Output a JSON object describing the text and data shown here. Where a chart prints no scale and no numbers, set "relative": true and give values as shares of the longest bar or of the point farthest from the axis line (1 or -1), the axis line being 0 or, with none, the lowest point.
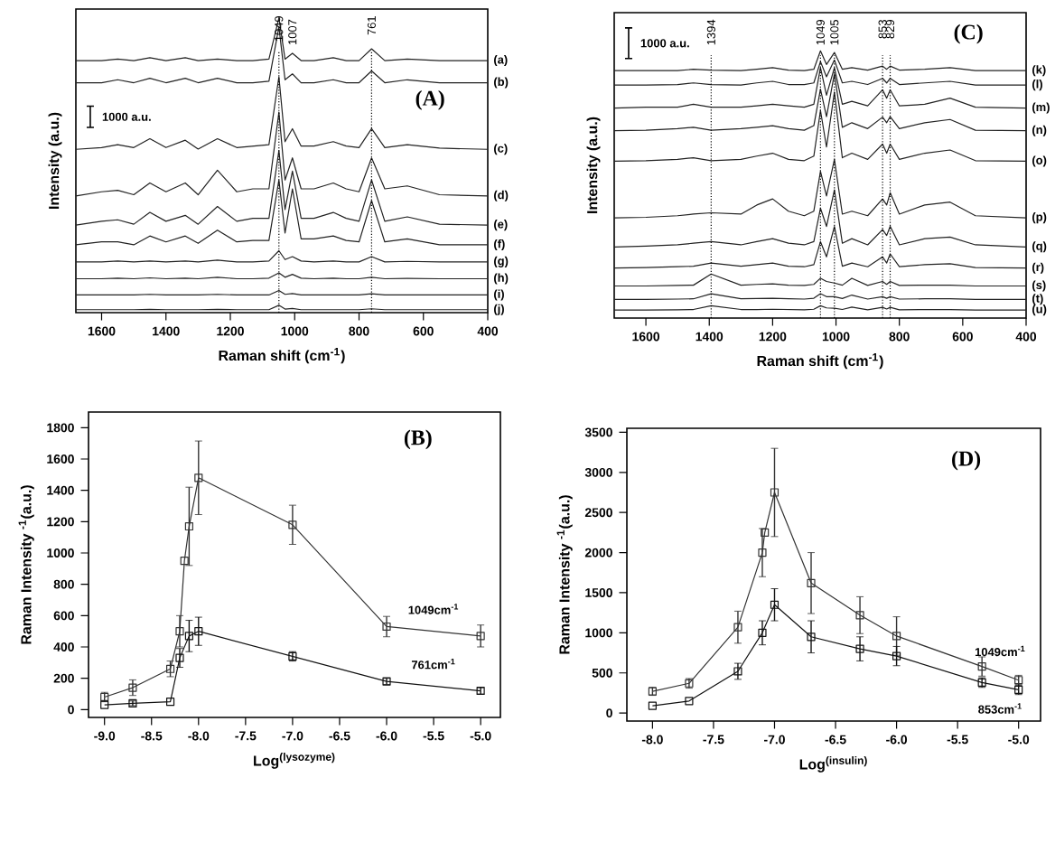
{
  "chart_data": [
    {
      "type": "line",
      "relative": true,
      "xlabel": "Raman shift (cm$^{-1}$)",
      "ylabel": "Intensity (a.u.)",
      "xlim": [
        1680,
        400
      ],
      "xticks": [
        1600,
        1400,
        1200,
        1000,
        800,
        600,
        400
      ],
      "x": [
        1680,
        1600,
        1550,
        1500,
        1450,
        1400,
        1340,
        1300,
        1240,
        1180,
        1130,
        1080,
        1049,
        1030,
        1007,
        980,
        940,
        880,
        840,
        800,
        761,
        720,
        650,
        550,
        400
      ],
      "series": [
        {
          "name": "(a)",
          "color": "#222222",
          "values": [
            0.855,
            0.855,
            0.86,
            0.855,
            0.865,
            0.855,
            0.865,
            0.855,
            0.86,
            0.855,
            0.855,
            0.86,
            1.0,
            0.86,
            0.88,
            0.855,
            0.855,
            0.865,
            0.855,
            0.855,
            0.895,
            0.855,
            0.86,
            0.855,
            0.855
          ]
        },
        {
          "name": "(b)",
          "color": "#222222",
          "values": [
            0.78,
            0.78,
            0.79,
            0.78,
            0.795,
            0.78,
            0.795,
            0.78,
            0.795,
            0.78,
            0.78,
            0.785,
            0.97,
            0.79,
            0.81,
            0.78,
            0.78,
            0.79,
            0.78,
            0.78,
            0.82,
            0.78,
            0.79,
            0.78,
            0.78
          ]
        },
        {
          "name": "(c)",
          "color": "#222222",
          "values": [
            0.554,
            0.56,
            0.57,
            0.56,
            0.59,
            0.56,
            0.585,
            0.555,
            0.59,
            0.56,
            0.565,
            0.57,
            0.8,
            0.58,
            0.624,
            0.565,
            0.565,
            0.58,
            0.565,
            0.56,
            0.624,
            0.56,
            0.57,
            0.558,
            0.554
          ]
        },
        {
          "name": "(d)",
          "color": "#222222",
          "values": [
            0.396,
            0.41,
            0.415,
            0.4,
            0.44,
            0.41,
            0.44,
            0.4,
            0.483,
            0.41,
            0.42,
            0.42,
            0.68,
            0.45,
            0.525,
            0.42,
            0.42,
            0.44,
            0.42,
            0.41,
            0.525,
            0.42,
            0.43,
            0.4,
            0.396
          ]
        },
        {
          "name": "(e)",
          "color": "#222222",
          "values": [
            0.297,
            0.31,
            0.315,
            0.3,
            0.34,
            0.31,
            0.33,
            0.3,
            0.36,
            0.31,
            0.32,
            0.32,
            0.55,
            0.35,
            0.48,
            0.32,
            0.32,
            0.34,
            0.32,
            0.31,
            0.45,
            0.31,
            0.325,
            0.3,
            0.297
          ]
        },
        {
          "name": "(f)",
          "color": "#222222",
          "values": [
            0.23,
            0.24,
            0.24,
            0.23,
            0.26,
            0.24,
            0.26,
            0.235,
            0.28,
            0.24,
            0.245,
            0.245,
            0.45,
            0.27,
            0.42,
            0.25,
            0.25,
            0.26,
            0.245,
            0.24,
            0.38,
            0.24,
            0.25,
            0.23,
            0.23
          ]
        },
        {
          "name": "(g)",
          "color": "#222222",
          "values": [
            0.172,
            0.172,
            0.175,
            0.172,
            0.175,
            0.172,
            0.175,
            0.172,
            0.178,
            0.172,
            0.172,
            0.175,
            0.21,
            0.18,
            0.19,
            0.175,
            0.172,
            0.175,
            0.172,
            0.172,
            0.19,
            0.172,
            0.174,
            0.172,
            0.172
          ]
        },
        {
          "name": "(h)",
          "color": "#222222",
          "values": [
            0.115,
            0.115,
            0.117,
            0.115,
            0.118,
            0.115,
            0.117,
            0.115,
            0.12,
            0.115,
            0.115,
            0.117,
            0.135,
            0.12,
            0.13,
            0.117,
            0.115,
            0.117,
            0.115,
            0.115,
            0.12,
            0.115,
            0.116,
            0.115,
            0.115
          ]
        },
        {
          "name": "(i)",
          "color": "#222222",
          "values": [
            0.06,
            0.06,
            0.06,
            0.06,
            0.062,
            0.06,
            0.06,
            0.06,
            0.062,
            0.06,
            0.06,
            0.06,
            0.075,
            0.062,
            0.065,
            0.06,
            0.06,
            0.06,
            0.06,
            0.06,
            0.064,
            0.06,
            0.06,
            0.06,
            0.06
          ]
        },
        {
          "name": "(j)",
          "color": "#222222",
          "values": [
            0.01,
            0.01,
            0.01,
            0.01,
            0.011,
            0.01,
            0.01,
            0.01,
            0.011,
            0.01,
            0.01,
            0.01,
            0.025,
            0.012,
            0.014,
            0.01,
            0.01,
            0.01,
            0.01,
            0.01,
            0.013,
            0.01,
            0.01,
            0.01,
            0.01
          ]
        }
      ],
      "ref_lines": [
        {
          "axis": "x",
          "value": 1049,
          "label": "1049",
          "line_style": "dotted"
        },
        {
          "axis": "x",
          "value": 761,
          "label": "761",
          "line_style": "dotted"
        }
      ],
      "annotations": [
        "(A)",
        "1000 a.u.",
        {
          "text": "1007",
          "x": 1007,
          "y": 0.9
        }
      ]
    },
    {
      "type": "line",
      "relative": true,
      "xlabel": "Raman shift (cm$^{-1}$)",
      "ylabel": "Intensity (a.u.)",
      "xlim": [
        1700,
        400
      ],
      "xticks": [
        1600,
        1400,
        1200,
        1000,
        800,
        600,
        400
      ],
      "x": [
        1700,
        1600,
        1500,
        1450,
        1394,
        1300,
        1250,
        1200,
        1150,
        1100,
        1070,
        1049,
        1030,
        1005,
        980,
        950,
        900,
        853,
        840,
        829,
        800,
        720,
        640,
        560,
        400
      ],
      "series": [
        {
          "name": "(k)",
          "color": "#222222",
          "values": [
            0.926,
            0.926,
            0.926,
            0.931,
            0.928,
            0.926,
            0.931,
            0.937,
            0.928,
            0.926,
            0.931,
            1.0,
            0.949,
            0.994,
            0.931,
            0.937,
            0.928,
            0.943,
            0.931,
            0.943,
            0.928,
            0.931,
            0.937,
            0.926,
            0.926
          ]
        },
        {
          "name": "(l)",
          "color": "#222222",
          "values": [
            0.872,
            0.872,
            0.874,
            0.88,
            0.874,
            0.872,
            0.88,
            0.886,
            0.874,
            0.874,
            0.88,
            0.96,
            0.903,
            0.966,
            0.88,
            0.886,
            0.874,
            0.897,
            0.88,
            0.897,
            0.874,
            0.88,
            0.886,
            0.872,
            0.872
          ]
        },
        {
          "name": "(m)",
          "color": "#222222",
          "values": [
            0.786,
            0.789,
            0.789,
            0.8,
            0.789,
            0.789,
            0.794,
            0.8,
            0.794,
            0.789,
            0.8,
            0.937,
            0.834,
            0.937,
            0.8,
            0.811,
            0.794,
            0.854,
            0.823,
            0.854,
            0.794,
            0.8,
            0.823,
            0.789,
            0.786
          ]
        },
        {
          "name": "(n)",
          "color": "#222222",
          "values": [
            0.701,
            0.703,
            0.709,
            0.714,
            0.703,
            0.709,
            0.714,
            0.72,
            0.709,
            0.703,
            0.72,
            0.857,
            0.754,
            0.914,
            0.714,
            0.731,
            0.709,
            0.752,
            0.731,
            0.754,
            0.709,
            0.731,
            0.743,
            0.703,
            0.701
          ]
        },
        {
          "name": "(o)",
          "color": "#222222",
          "values": [
            0.587,
            0.589,
            0.594,
            0.6,
            0.589,
            0.594,
            0.606,
            0.617,
            0.594,
            0.589,
            0.606,
            0.777,
            0.64,
            0.846,
            0.6,
            0.617,
            0.594,
            0.651,
            0.617,
            0.651,
            0.594,
            0.617,
            0.629,
            0.589,
            0.587
          ]
        },
        {
          "name": "(p)",
          "color": "#222222",
          "values": [
            0.375,
            0.377,
            0.383,
            0.389,
            0.394,
            0.389,
            0.423,
            0.446,
            0.4,
            0.383,
            0.4,
            0.549,
            0.457,
            0.594,
            0.389,
            0.4,
            0.383,
            0.446,
            0.423,
            0.469,
            0.389,
            0.423,
            0.434,
            0.383,
            0.375
          ]
        },
        {
          "name": "(q)",
          "color": "#222222",
          "values": [
            0.266,
            0.269,
            0.274,
            0.28,
            0.286,
            0.274,
            0.286,
            0.297,
            0.28,
            0.274,
            0.286,
            0.411,
            0.343,
            0.48,
            0.28,
            0.297,
            0.274,
            0.331,
            0.309,
            0.343,
            0.274,
            0.297,
            0.303,
            0.274,
            0.266
          ]
        },
        {
          "name": "(r)",
          "color": "#222222",
          "values": [
            0.187,
            0.189,
            0.192,
            0.194,
            0.206,
            0.194,
            0.2,
            0.206,
            0.194,
            0.192,
            0.2,
            0.286,
            0.229,
            0.343,
            0.194,
            0.206,
            0.192,
            0.229,
            0.206,
            0.24,
            0.192,
            0.2,
            0.203,
            0.189,
            0.187
          ]
        },
        {
          "name": "(s)",
          "color": "#222222",
          "values": [
            0.12,
            0.12,
            0.122,
            0.123,
            0.165,
            0.123,
            0.126,
            0.128,
            0.123,
            0.122,
            0.126,
            0.149,
            0.137,
            0.131,
            0.123,
            0.149,
            0.122,
            0.137,
            0.126,
            0.137,
            0.122,
            0.123,
            0.123,
            0.12,
            0.12
          ]
        },
        {
          "name": "(t)",
          "color": "#222222",
          "values": [
            0.07,
            0.07,
            0.071,
            0.072,
            0.091,
            0.072,
            0.073,
            0.074,
            0.072,
            0.071,
            0.074,
            0.091,
            0.08,
            0.08,
            0.073,
            0.086,
            0.071,
            0.08,
            0.074,
            0.08,
            0.071,
            0.072,
            0.072,
            0.07,
            0.07
          ]
        },
        {
          "name": "(u)",
          "color": "#222222",
          "values": [
            0.03,
            0.03,
            0.031,
            0.032,
            0.046,
            0.032,
            0.032,
            0.033,
            0.032,
            0.031,
            0.033,
            0.046,
            0.038,
            0.037,
            0.032,
            0.041,
            0.031,
            0.04,
            0.034,
            0.04,
            0.031,
            0.032,
            0.032,
            0.03,
            0.03
          ]
        }
      ],
      "ref_lines": [
        {
          "axis": "x",
          "value": 1394,
          "label": "1394",
          "line_style": "dotted"
        },
        {
          "axis": "x",
          "value": 1049,
          "label": "1049",
          "line_style": "dotted"
        },
        {
          "axis": "x",
          "value": 1005,
          "label": "1005",
          "line_style": "dotted"
        },
        {
          "axis": "x",
          "value": 853,
          "label": "853",
          "line_style": "dotted"
        },
        {
          "axis": "x",
          "value": 829,
          "label": "829",
          "line_style": "dotted"
        }
      ],
      "annotations": [
        "(C)",
        "1000 a.u."
      ]
    },
    {
      "type": "line",
      "marker": "square",
      "xlabel": "Log$^{(lysozyme)}$",
      "ylabel": "Raman Intensity $^{-1}$(a.u.)",
      "xlim": [
        -9.17,
        -4.79
      ],
      "xticks": [
        {
          "value": -9,
          "label": "-9.0"
        },
        {
          "value": -8.5,
          "label": "-8.5"
        },
        {
          "value": -8,
          "label": "-8.0"
        },
        {
          "value": -7.5,
          "label": "-7.5"
        },
        {
          "value": -7,
          "label": "-7.0"
        },
        {
          "value": -6.5,
          "label": "-6.5"
        },
        {
          "value": -6,
          "label": "-6.0"
        },
        {
          "value": -5.5,
          "label": "-5.5"
        },
        {
          "value": -5,
          "label": "-5.0"
        }
      ],
      "ylim": [
        -50,
        1900
      ],
      "yticks": [
        0,
        200,
        400,
        600,
        800,
        1000,
        1200,
        1400,
        1600,
        1800
      ],
      "series": [
        {
          "name": "1049cm$^{-1}$",
          "color": "#333333",
          "x": [
            -9.0,
            -8.7,
            -8.3,
            -8.2,
            -8.15,
            -8.1,
            -8.0,
            -7.0,
            -6.0,
            -5.0
          ],
          "values": [
            80,
            140,
            260,
            500,
            950,
            1170,
            1480,
            1180,
            530,
            470
          ],
          "errors": [
            30,
            50,
            50,
            100,
            null,
            250,
            235,
            125,
            65,
            70
          ]
        },
        {
          "name": "761cm$^{-1}$",
          "color": "#111111",
          "x": [
            -9.0,
            -8.7,
            -8.3,
            -8.2,
            -8.1,
            -8.0,
            -7.0,
            -6.0,
            -5.0
          ],
          "values": [
            30,
            40,
            50,
            330,
            470,
            500,
            340,
            180,
            120
          ],
          "errors": [
            null,
            15,
            null,
            60,
            100,
            90,
            30,
            20,
            20
          ]
        }
      ],
      "annotations": [
        "(B)"
      ]
    },
    {
      "type": "line",
      "marker": "square",
      "xlabel": "Log$^{(insulin)}$",
      "ylabel": "Raman Intensity $^{-1}$(a.u.)",
      "xlim": [
        -8.21,
        -4.82
      ],
      "xticks": [
        {
          "value": -8,
          "label": "-8.0"
        },
        {
          "value": -7.5,
          "label": "-7.5"
        },
        {
          "value": -7,
          "label": "-7.0"
        },
        {
          "value": -6.5,
          "label": "-6.5"
        },
        {
          "value": -6,
          "label": "-6.0"
        },
        {
          "value": -5.5,
          "label": "-5.5"
        },
        {
          "value": -5,
          "label": "-5.0"
        }
      ],
      "ylim": [
        -100,
        3550
      ],
      "yticks": [
        0,
        500,
        1000,
        1500,
        2000,
        2500,
        3000,
        3500
      ],
      "series": [
        {
          "name": "1049cm$^{-1}$",
          "color": "#333333",
          "x": [
            -8.0,
            -7.7,
            -7.3,
            -7.1,
            -7.08,
            -7.0,
            -6.7,
            -6.3,
            -6.0,
            -5.3,
            -5.0
          ],
          "values": [
            270,
            370,
            1070,
            2000,
            2250,
            2750,
            1620,
            1220,
            960,
            580,
            410
          ],
          "errors": [
            50,
            60,
            200,
            300,
            null,
            550,
            380,
            230,
            240,
            120,
            60
          ]
        },
        {
          "name": "853cm$^{-1}$",
          "color": "#111111",
          "x": [
            -8.0,
            -7.7,
            -7.3,
            -7.1,
            -7.0,
            -6.7,
            -6.3,
            -6.0,
            -5.3,
            -5.0
          ],
          "values": [
            90,
            150,
            520,
            1000,
            1350,
            950,
            800,
            710,
            380,
            290
          ],
          "errors": [
            null,
            null,
            100,
            150,
            200,
            200,
            150,
            120,
            60,
            60
          ]
        }
      ],
      "annotations": [
        "(D)"
      ]
    }
  ]
}
